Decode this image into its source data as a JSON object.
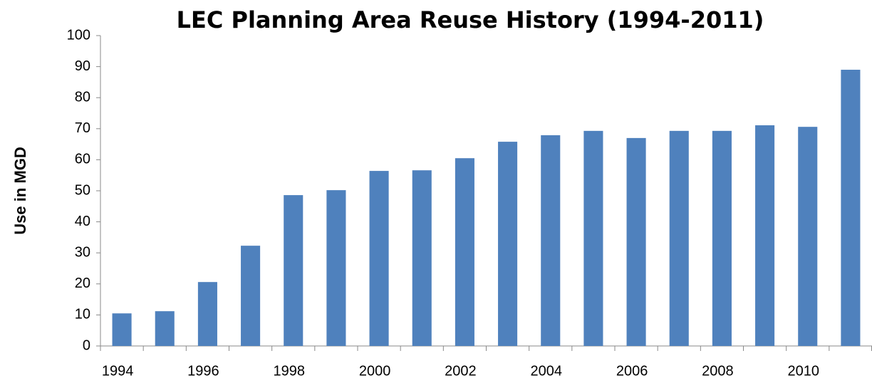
{
  "chart_data": {
    "type": "bar",
    "title": "LEC Planning Area Reuse History (1994-2011)",
    "y_label": "Use in MGD",
    "categories": [
      "1994",
      null,
      "1996",
      null,
      "1998",
      null,
      "2000",
      null,
      "2002",
      null,
      "2004",
      null,
      "2006",
      null,
      "2008",
      null,
      "2010",
      null
    ],
    "values": [
      10.5,
      11.2,
      20.6,
      32.3,
      48.6,
      50.2,
      56.4,
      56.6,
      60.5,
      65.8,
      67.9,
      69.3,
      67.0,
      69.3,
      69.3,
      71.1,
      70.6,
      89.0
    ],
    "color": "#4f81bd",
    "ylim": [
      0,
      100
    ],
    "yticks": [
      0,
      10,
      20,
      30,
      40,
      50,
      60,
      70,
      80,
      90,
      100
    ],
    "grid": false
  }
}
